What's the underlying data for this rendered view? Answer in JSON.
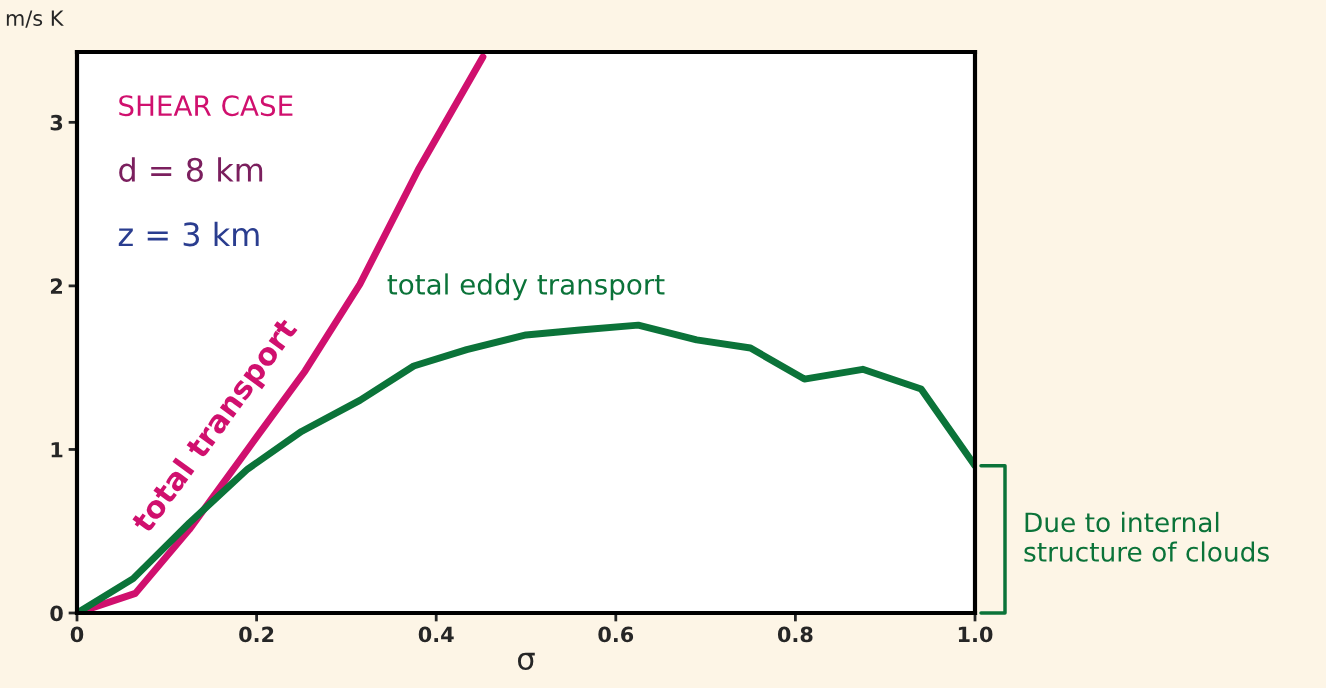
{
  "chart_data": {
    "type": "line",
    "xlabel": "σ",
    "ylabel": "m/s K",
    "xlim": [
      0,
      1
    ],
    "ylim": [
      0,
      3.43
    ],
    "xticks": [
      0,
      0.2,
      0.4,
      0.6,
      0.8,
      {
        "value": 1,
        "label": "1.0"
      }
    ],
    "yticks": [
      0,
      1,
      2,
      3
    ],
    "grid": false,
    "legend": false,
    "series": [
      {
        "name": "total transport",
        "color": "#d0106e",
        "x": [
          0,
          0.065,
          0.125,
          0.19,
          0.254,
          0.315,
          0.38,
          0.452
        ],
        "values": [
          0,
          0.12,
          0.51,
          1.0,
          1.48,
          2.01,
          2.71,
          3.4
        ]
      },
      {
        "name": "total eddy transport",
        "color": "#0b7339",
        "x": [
          0,
          0.0625,
          0.125,
          0.19,
          0.25,
          0.315,
          0.375,
          0.434,
          0.5,
          0.56,
          0.625,
          0.69,
          0.75,
          0.81,
          0.875,
          0.94,
          1.0
        ],
        "values": [
          0,
          0.21,
          0.55,
          0.88,
          1.11,
          1.3,
          1.51,
          1.61,
          1.7,
          1.73,
          1.76,
          1.67,
          1.62,
          1.43,
          1.49,
          1.37,
          0.9
        ]
      }
    ],
    "annotations": [
      "SHEAR CASE",
      "d = 8 km",
      "z = 3 km",
      "Due to internal structure of clouds"
    ]
  }
}
